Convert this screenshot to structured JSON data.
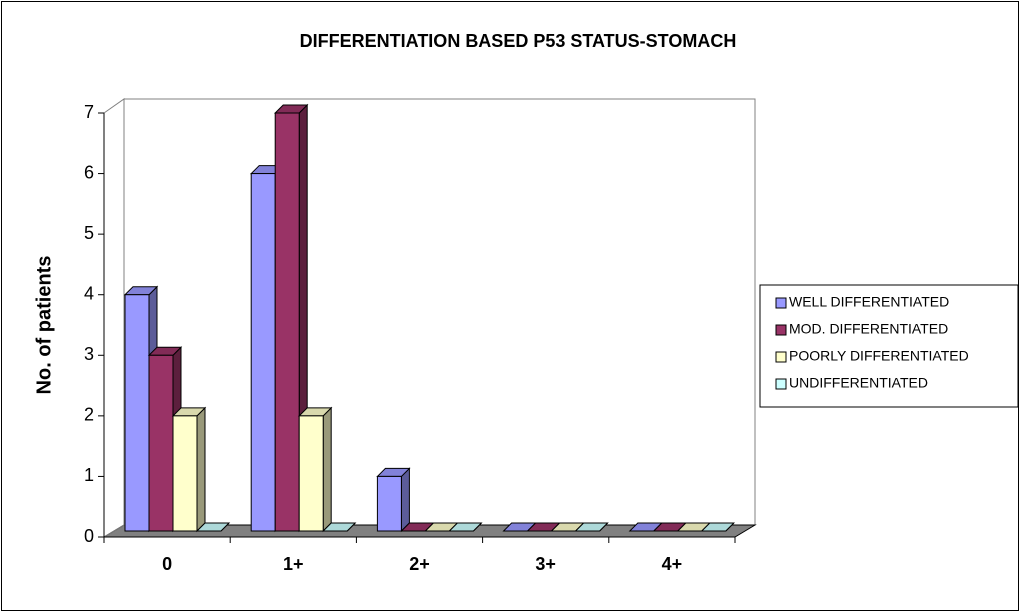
{
  "chart_data": {
    "type": "bar3d",
    "title": "DIFFERENTIATION BASED P53 STATUS-STOMACH",
    "y_label": "No. of patients",
    "categories": [
      "0",
      "1+",
      "2+",
      "3+",
      "4+"
    ],
    "series": [
      {
        "name": "WELL DIFFERENTIATED",
        "color": "#9999ff",
        "values": [
          4,
          6,
          1,
          0,
          0
        ]
      },
      {
        "name": "MOD. DIFFERENTIATED",
        "color": "#993366",
        "values": [
          3,
          7,
          0,
          0,
          0
        ]
      },
      {
        "name": "POORLY DIFFERENTIATED",
        "color": "#ffffcc",
        "values": [
          2,
          2,
          0,
          0,
          0
        ]
      },
      {
        "name": "UNDIFFERENTIATED",
        "color": "#ccffff",
        "values": [
          0,
          0,
          0,
          0,
          0
        ]
      }
    ],
    "ylim": [
      0,
      7
    ],
    "yticks": [
      0,
      1,
      2,
      3,
      4,
      5,
      6,
      7
    ],
    "legend": "right"
  }
}
